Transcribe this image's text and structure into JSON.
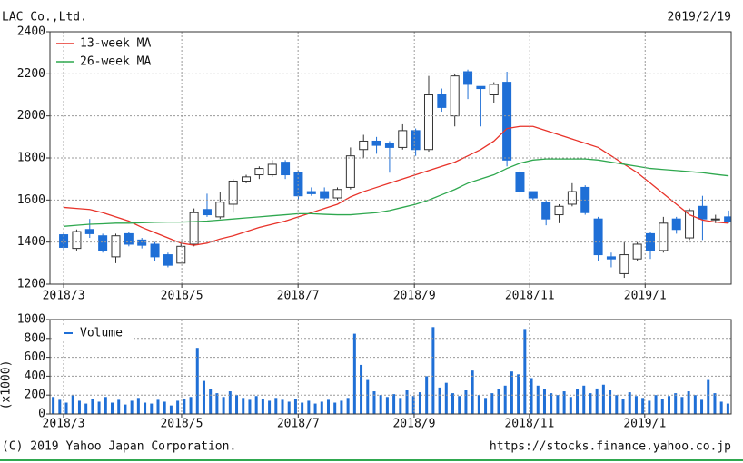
{
  "chart_data": [
    {
      "type": "candlestick",
      "title": "LAC Co.,Ltd.",
      "date": "2019/2/19",
      "x": [
        0,
        1,
        2,
        3,
        4,
        5,
        6,
        7,
        8,
        9,
        10,
        11,
        12,
        13,
        14,
        15,
        16,
        17,
        18,
        19,
        20,
        21,
        22,
        23,
        24,
        25,
        26,
        27,
        28,
        29,
        30,
        31,
        32,
        33,
        34,
        35,
        36,
        37,
        38,
        39,
        40,
        41,
        42,
        43,
        44,
        45,
        46,
        47,
        48,
        49,
        50,
        51
      ],
      "open": [
        1435,
        1370,
        1460,
        1430,
        1330,
        1440,
        1410,
        1390,
        1340,
        1300,
        1390,
        1555,
        1520,
        1580,
        1690,
        1720,
        1720,
        1780,
        1730,
        1640,
        1640,
        1610,
        1660,
        1840,
        1880,
        1870,
        1850,
        1930,
        1840,
        2100,
        2000,
        2210,
        2140,
        2100,
        2160,
        1730,
        1640,
        1590,
        1530,
        1580,
        1660,
        1510,
        1330,
        1250,
        1320,
        1440,
        1360,
        1510,
        1420,
        1570,
        1510,
        1520
      ],
      "high": [
        1445,
        1460,
        1510,
        1440,
        1440,
        1450,
        1420,
        1400,
        1350,
        1400,
        1560,
        1630,
        1640,
        1700,
        1720,
        1760,
        1790,
        1790,
        1740,
        1660,
        1660,
        1660,
        1850,
        1910,
        1900,
        1880,
        1960,
        1940,
        2190,
        2130,
        2200,
        2220,
        2140,
        2160,
        2210,
        1780,
        1640,
        1600,
        1580,
        1680,
        1670,
        1520,
        1350,
        1400,
        1400,
        1450,
        1520,
        1520,
        1560,
        1620,
        1530,
        1550
      ],
      "low": [
        1360,
        1360,
        1420,
        1350,
        1300,
        1380,
        1370,
        1310,
        1280,
        1300,
        1380,
        1520,
        1510,
        1540,
        1680,
        1700,
        1710,
        1700,
        1600,
        1620,
        1600,
        1600,
        1650,
        1800,
        1820,
        1730,
        1840,
        1810,
        1830,
        2020,
        1950,
        2080,
        1950,
        2060,
        1760,
        1600,
        1600,
        1480,
        1490,
        1570,
        1530,
        1310,
        1280,
        1230,
        1310,
        1320,
        1350,
        1440,
        1410,
        1410,
        1490,
        1490
      ],
      "close": [
        1375,
        1450,
        1440,
        1360,
        1430,
        1390,
        1385,
        1330,
        1290,
        1380,
        1540,
        1530,
        1590,
        1690,
        1710,
        1750,
        1770,
        1720,
        1620,
        1630,
        1610,
        1650,
        1810,
        1880,
        1860,
        1850,
        1930,
        1840,
        2100,
        2040,
        2190,
        2150,
        2130,
        2150,
        1790,
        1640,
        1610,
        1510,
        1570,
        1640,
        1540,
        1340,
        1320,
        1340,
        1390,
        1360,
        1490,
        1460,
        1550,
        1510,
        1510,
        1500
      ],
      "up_color": "#ffffff",
      "down_color": "#1f6fd6",
      "outline_color": "#333333",
      "series": [
        {
          "name": "13-week MA",
          "color": "#e8332a",
          "values": [
            1565,
            1560,
            1555,
            1540,
            1520,
            1500,
            1470,
            1445,
            1420,
            1395,
            1385,
            1395,
            1415,
            1430,
            1450,
            1470,
            1485,
            1500,
            1520,
            1540,
            1560,
            1580,
            1615,
            1640,
            1660,
            1680,
            1700,
            1720,
            1740,
            1760,
            1780,
            1810,
            1840,
            1880,
            1940,
            1950,
            1950,
            1930,
            1910,
            1890,
            1870,
            1850,
            1810,
            1770,
            1730,
            1680,
            1630,
            1580,
            1530,
            1505,
            1495,
            1490
          ]
        },
        {
          "name": "26-week MA",
          "color": "#2fa84f",
          "values": [
            1475,
            1480,
            1485,
            1487,
            1490,
            1490,
            1492,
            1494,
            1495,
            1495,
            1497,
            1500,
            1505,
            1510,
            1515,
            1520,
            1525,
            1530,
            1535,
            1535,
            1532,
            1530,
            1530,
            1535,
            1540,
            1550,
            1565,
            1580,
            1600,
            1625,
            1650,
            1680,
            1700,
            1720,
            1750,
            1775,
            1790,
            1795,
            1795,
            1795,
            1795,
            1790,
            1780,
            1770,
            1760,
            1750,
            1745,
            1740,
            1735,
            1730,
            1722,
            1715
          ]
        }
      ],
      "xlim": [
        -1.05,
        51.2
      ],
      "xticks": [
        {
          "value": 0,
          "label": "2018/3"
        },
        {
          "value": 9.06,
          "label": "2018/5"
        },
        {
          "value": 17.98,
          "label": "2018/7"
        },
        {
          "value": 26.9,
          "label": "2018/9"
        },
        {
          "value": 35.75,
          "label": "2018/11"
        },
        {
          "value": 44.6,
          "label": "2019/1"
        }
      ],
      "ylim": [
        1200,
        2400
      ],
      "yticks": [
        1200,
        1400,
        1600,
        1800,
        2000,
        2200,
        2400
      ],
      "grid": true
    },
    {
      "type": "bar",
      "ylabel": "(x1000)",
      "categories": [
        null,
        null,
        null,
        null,
        null,
        null,
        null,
        null,
        null,
        null,
        null,
        null,
        null,
        null,
        null,
        null,
        null,
        null,
        null,
        null,
        null,
        null,
        null,
        null,
        null,
        null,
        null,
        null,
        null,
        null,
        null,
        null,
        null,
        null,
        null,
        null,
        null,
        null,
        null,
        null,
        null,
        null,
        null,
        null,
        null,
        null,
        null,
        null,
        null,
        null,
        null,
        null,
        null,
        null,
        null,
        null,
        null,
        null,
        null,
        null,
        null,
        null,
        null,
        null,
        null,
        null,
        null,
        null,
        null,
        null,
        null,
        null,
        null,
        null,
        null,
        null,
        null,
        null,
        null,
        null,
        null,
        null,
        null,
        null,
        null,
        null,
        null,
        null,
        null,
        null,
        null,
        null,
        null,
        null,
        null,
        null,
        null,
        null,
        null,
        null,
        null,
        null,
        null,
        null
      ],
      "series": [
        {
          "name": "Volume",
          "color": "#1f6fd6",
          "values": [
            180,
            150,
            120,
            200,
            140,
            110,
            160,
            130,
            180,
            120,
            150,
            100,
            140,
            170,
            120,
            110,
            150,
            130,
            90,
            140,
            160,
            180,
            700,
            350,
            260,
            220,
            180,
            240,
            200,
            170,
            150,
            190,
            160,
            140,
            170,
            150,
            130,
            160,
            120,
            140,
            110,
            130,
            150,
            120,
            140,
            170,
            850,
            520,
            360,
            240,
            200,
            180,
            210,
            170,
            250,
            190,
            230,
            400,
            920,
            280,
            330,
            220,
            190,
            250,
            460,
            200,
            170,
            220,
            260,
            300,
            450,
            420,
            900,
            380,
            300,
            260,
            220,
            200,
            240,
            180,
            260,
            300,
            220,
            270,
            310,
            250,
            200,
            160,
            230,
            190,
            170,
            140,
            200,
            160,
            190,
            220,
            180,
            240,
            200,
            150,
            360,
            220,
            130,
            110
          ]
        }
      ],
      "xticks": [
        {
          "value": 1.58,
          "label": "2018/3"
        },
        {
          "value": 19.6,
          "label": "2018/5"
        },
        {
          "value": 37.4,
          "label": "2018/7"
        },
        {
          "value": 55.1,
          "label": "2018/9"
        },
        {
          "value": 72.7,
          "label": "2018/11"
        },
        {
          "value": 90.3,
          "label": "2019/1"
        }
      ],
      "ylim": [
        0,
        1000
      ],
      "yticks": [
        0,
        200,
        400,
        600,
        800,
        1000
      ],
      "grid": true
    }
  ],
  "footer": {
    "copyright": "(C) 2019 Yahoo Japan Corporation.",
    "url": "https://stocks.finance.yahoo.co.jp"
  }
}
